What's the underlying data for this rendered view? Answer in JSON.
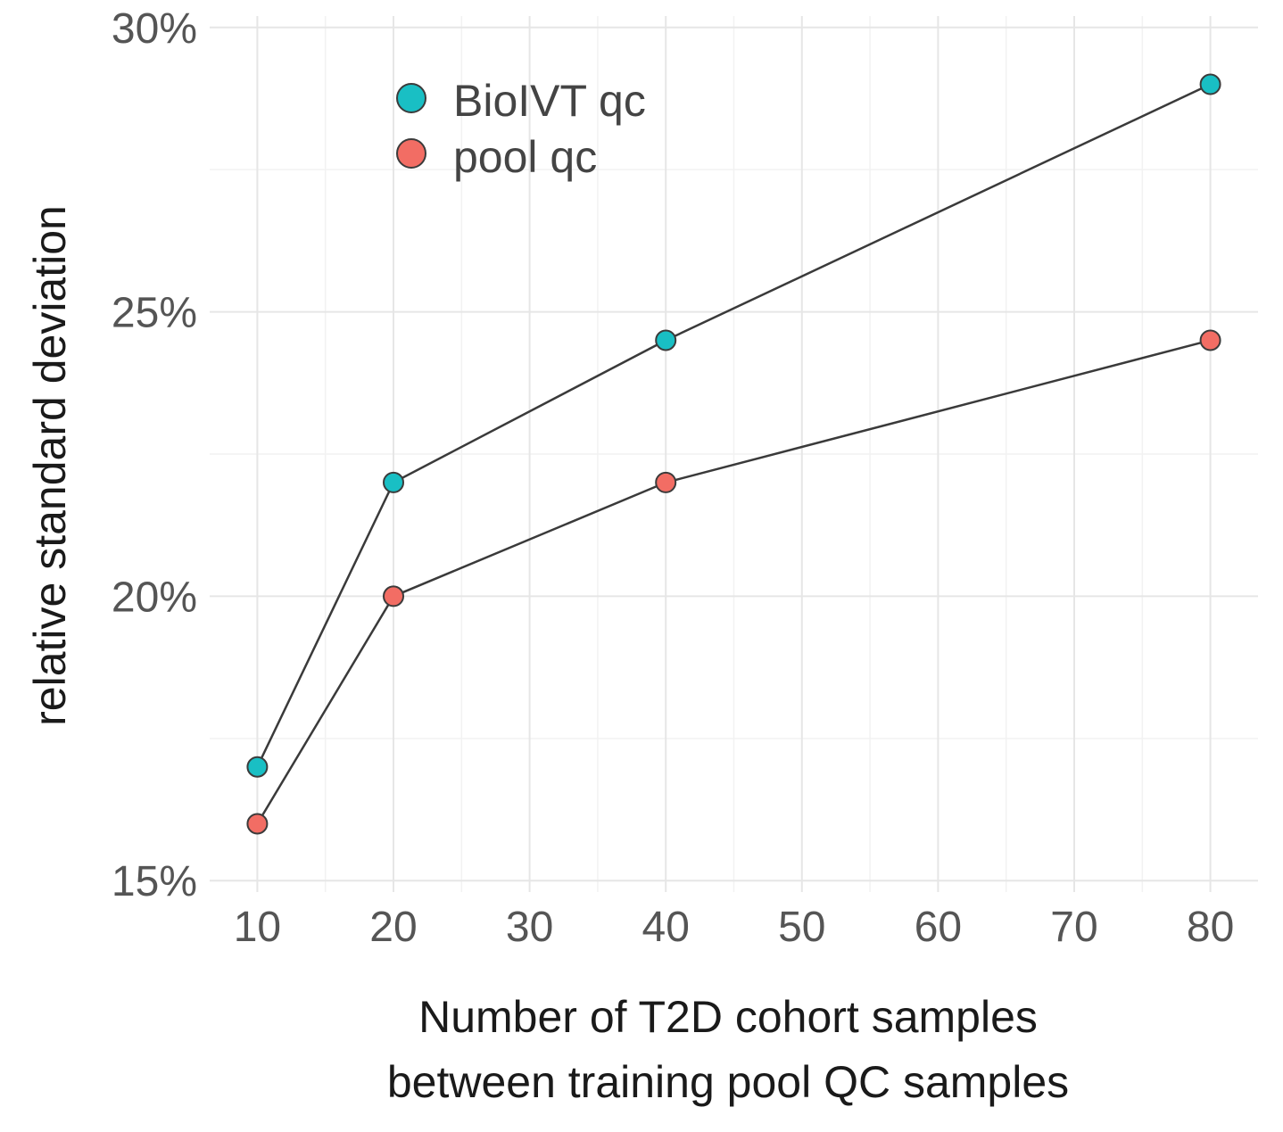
{
  "chart_data": {
    "type": "line",
    "title": "",
    "xlabel_lines": [
      "Number of T2D cohort samples",
      "between training pool QC samples"
    ],
    "ylabel": "relative standard deviation",
    "xlim": [
      6.5,
      83.5
    ],
    "ylim": [
      14.8,
      30.2
    ],
    "x_ticks": [
      10,
      20,
      30,
      40,
      50,
      60,
      70,
      80
    ],
    "y_ticks": [
      15,
      20,
      25,
      30
    ],
    "y_tick_labels": [
      "15%",
      "20%",
      "25%",
      "30%"
    ],
    "x": [
      10,
      20,
      40,
      80
    ],
    "series": [
      {
        "name": "BioIVT qc",
        "color": "#19bfc4",
        "values": [
          17.0,
          22.0,
          24.5,
          29.0
        ]
      },
      {
        "name": "pool qc",
        "color": "#f26d64",
        "values": [
          16.0,
          20.0,
          22.0,
          24.5
        ]
      }
    ],
    "legend_position": "top-left-inside",
    "grid": true
  }
}
